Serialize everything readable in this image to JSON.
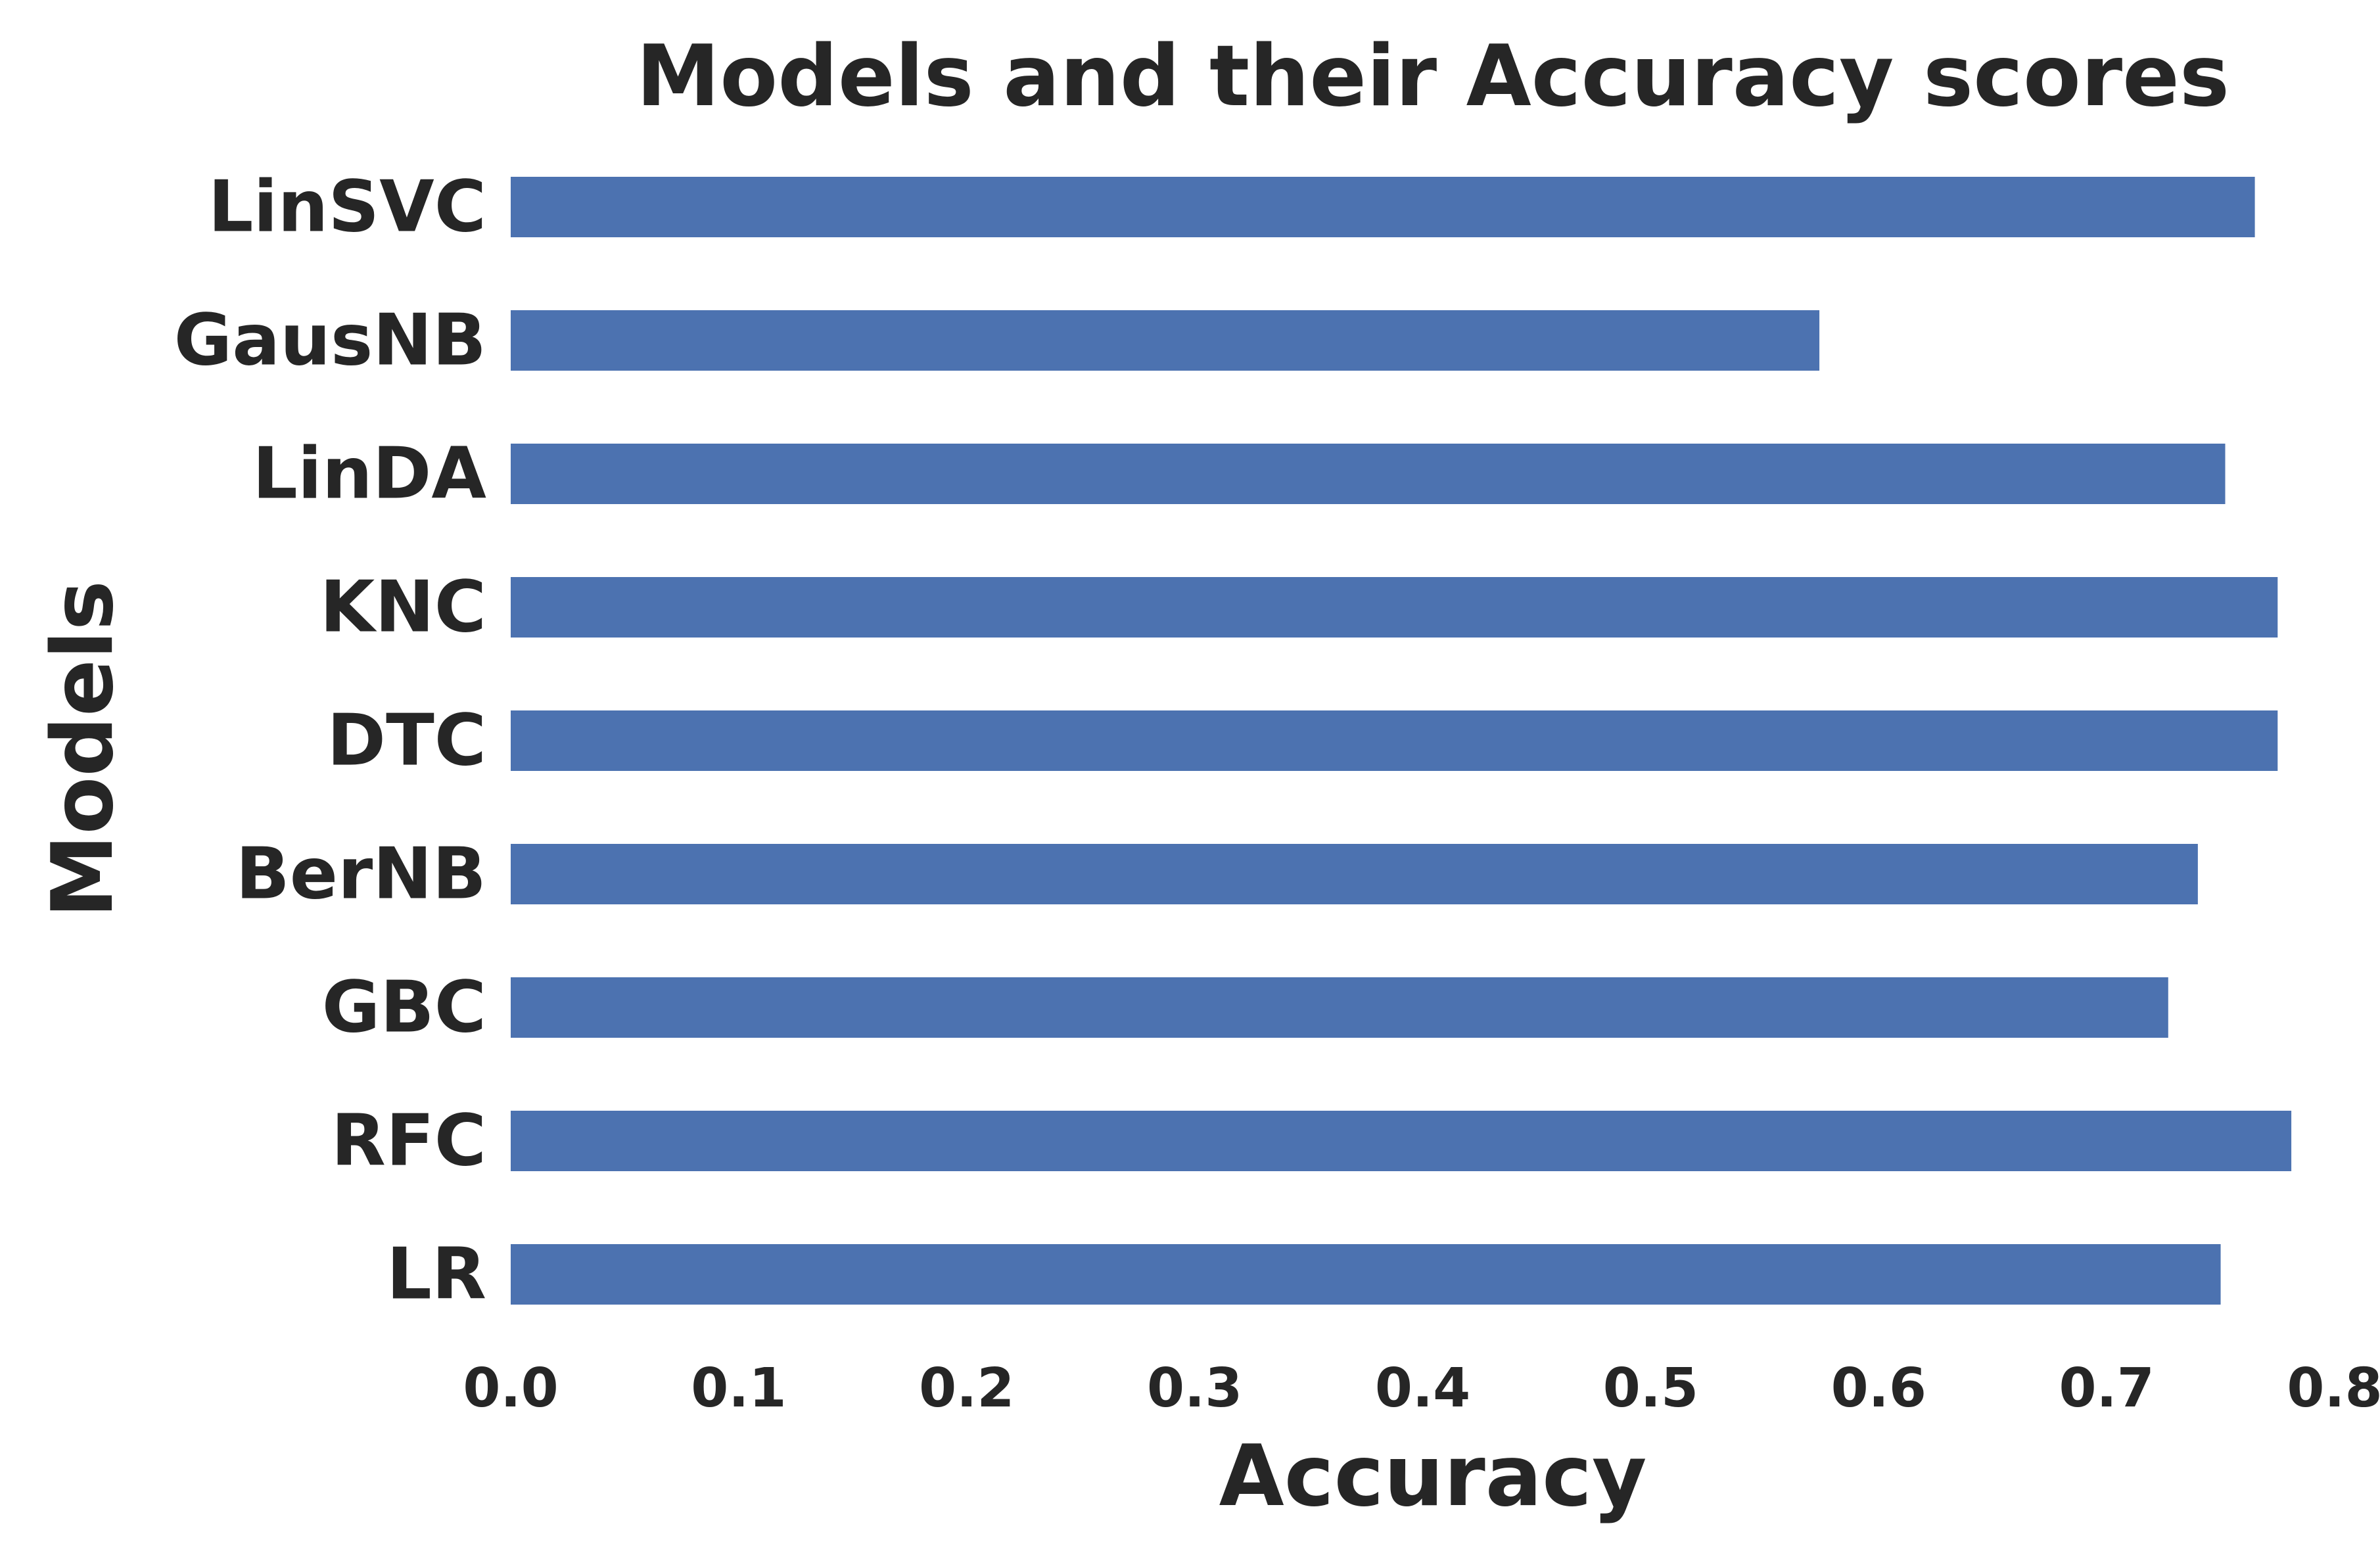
{
  "chart_data": {
    "type": "bar",
    "orientation": "horizontal",
    "title": "Models and their Accuracy scores",
    "xlabel": "Accuracy",
    "ylabel": "Models",
    "xlim": [
      0,
      0.8
    ],
    "xticks": [
      "0.0",
      "0.1",
      "0.2",
      "0.3",
      "0.4",
      "0.5",
      "0.6",
      "0.7",
      "0.8"
    ],
    "categories": [
      "LinSVC",
      "GausNB",
      "LinDA",
      "KNC",
      "DTC",
      "BerNB",
      "GBC",
      "RFC",
      "LR"
    ],
    "values": [
      0.765,
      0.574,
      0.752,
      0.775,
      0.775,
      0.74,
      0.727,
      0.781,
      0.75
    ],
    "bar_color": "#4c72b0",
    "grid": false,
    "legend": "none"
  }
}
